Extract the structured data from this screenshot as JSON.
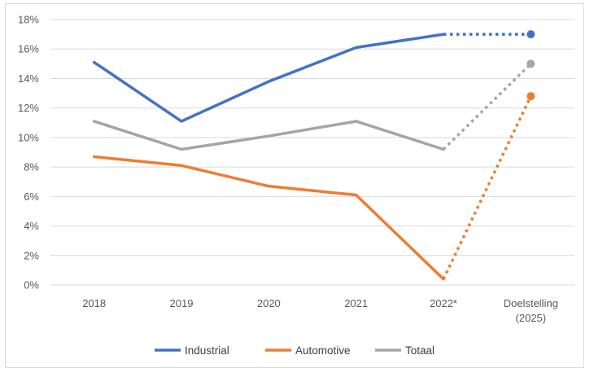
{
  "chart_data": {
    "type": "line",
    "categories": [
      "2018",
      "2019",
      "2020",
      "2021",
      "2022*",
      [
        "Doelstelling",
        "(2025)"
      ]
    ],
    "ylim": [
      0,
      18
    ],
    "yticks": [
      0,
      2,
      4,
      6,
      8,
      10,
      12,
      14,
      16,
      18
    ],
    "ytick_labels": [
      "0%",
      "2%",
      "4%",
      "6%",
      "8%",
      "10%",
      "12%",
      "14%",
      "16%",
      "18%"
    ],
    "grid": true,
    "legend_position": "bottom",
    "series": [
      {
        "name": "Industrial",
        "color": "#4472c4",
        "values": [
          15.1,
          11.1,
          13.8,
          16.1,
          17.0,
          17.0
        ]
      },
      {
        "name": "Automotive",
        "color": "#ed7d31",
        "values": [
          8.7,
          8.1,
          6.7,
          6.1,
          0.4,
          12.8
        ]
      },
      {
        "name": "Totaal",
        "color": "#a5a5a5",
        "values": [
          11.1,
          9.2,
          10.1,
          11.1,
          9.2,
          15.0
        ]
      }
    ],
    "projection_from_index": 4
  }
}
